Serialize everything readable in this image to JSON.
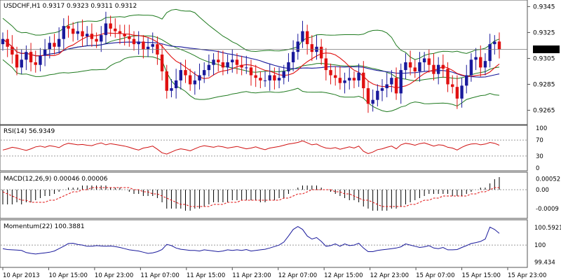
{
  "colors": {
    "bull": "#1a1a9c",
    "bear": "#e01010",
    "bollinger": "#1f7a1f",
    "ma_blue": "#1a1a9c",
    "ma_red": "#e01010",
    "rsi_line": "#d01010",
    "macd_hist": "#000000",
    "macd_signal": "#e01010",
    "momentum_line": "#1a1a9c",
    "grid": "#9a9a9a",
    "frame": "#555555",
    "price_tag_bg": "#000000",
    "price_tag_fg": "#ffffff"
  },
  "chart_data": [
    {
      "type": "candlestick",
      "title": "USDCHF,H1  0.9317 0.9323 0.9311 0.9312",
      "ylim": [
        0.9255,
        0.9349
      ],
      "yticks": [
        0.9345,
        0.9325,
        0.9305,
        0.9285,
        0.9265
      ],
      "ytick_labels": [
        "0.9345",
        "0.9325",
        "0.9305",
        "0.9285",
        "0.9265"
      ],
      "current_price": 0.9312,
      "current_price_label": "0.9312",
      "x_tick_labels": [
        "10 Apr 2013",
        "10 Apr 15:00",
        "10 Apr 23:00",
        "11 Apr 07:00",
        "11 Apr 15:00",
        "11 Apr 23:00",
        "12 Apr 07:00",
        "12 Apr 15:00",
        "12 Apr 23:00",
        "15 Apr 07:00",
        "15 Apr 15:00",
        "15 Apr 23:00"
      ],
      "candles_close": [
        0.932,
        0.9314,
        0.9308,
        0.9298,
        0.9304,
        0.931,
        0.9302,
        0.93,
        0.9307,
        0.9312,
        0.9317,
        0.9314,
        0.932,
        0.933,
        0.9328,
        0.9324,
        0.9326,
        0.9322,
        0.9324,
        0.932,
        0.9318,
        0.9323,
        0.9332,
        0.9328,
        0.9326,
        0.9324,
        0.9322,
        0.932,
        0.9316,
        0.9318,
        0.9312,
        0.9314,
        0.9316,
        0.9308,
        0.9295,
        0.928,
        0.9282,
        0.9288,
        0.9296,
        0.9292,
        0.9285,
        0.9288,
        0.9292,
        0.9296,
        0.93,
        0.9304,
        0.9302,
        0.9298,
        0.9302,
        0.9304,
        0.93,
        0.9298,
        0.9298,
        0.9292,
        0.929,
        0.9288,
        0.9288,
        0.9292,
        0.9288,
        0.929,
        0.9295,
        0.9302,
        0.931,
        0.9318,
        0.9326,
        0.9316,
        0.931,
        0.9314,
        0.9305,
        0.9296,
        0.9292,
        0.929,
        0.9286,
        0.9288,
        0.929,
        0.9288,
        0.9294,
        0.9282,
        0.927,
        0.9273,
        0.928,
        0.9282,
        0.9285,
        0.929,
        0.9278,
        0.9296,
        0.9302,
        0.9298,
        0.9295,
        0.9302,
        0.9305,
        0.93,
        0.9293,
        0.93,
        0.9297,
        0.9285,
        0.9283,
        0.9274,
        0.9284,
        0.9292,
        0.9304,
        0.9306,
        0.9298,
        0.9303,
        0.9316,
        0.9318,
        0.9312
      ]
    },
    {
      "type": "line",
      "title": "RSI(14) 56.9349",
      "ylim": [
        0,
        100
      ],
      "ytick_labels": [
        "100",
        "70",
        "30",
        "0"
      ],
      "yticks": [
        100,
        70,
        30,
        0
      ],
      "values": [
        45,
        48,
        52,
        50,
        47,
        44,
        48,
        53,
        55,
        52,
        56,
        54,
        51,
        58,
        62,
        60,
        58,
        59,
        57,
        56,
        60,
        63,
        58,
        61,
        59,
        57,
        55,
        52,
        48,
        45,
        50,
        52,
        55,
        47,
        38,
        35,
        40,
        45,
        48,
        46,
        43,
        48,
        53,
        56,
        54,
        52,
        55,
        53,
        50,
        52,
        54,
        51,
        48,
        50,
        53,
        49,
        46,
        50,
        52,
        54,
        57,
        60,
        62,
        64,
        68,
        63,
        58,
        60,
        54,
        50,
        49,
        51,
        47,
        50,
        53,
        50,
        55,
        42,
        36,
        40,
        46,
        48,
        52,
        55,
        48,
        58,
        62,
        60,
        57,
        61,
        63,
        59,
        55,
        58,
        57,
        52,
        50,
        45,
        52,
        57,
        60,
        61,
        58,
        60,
        64,
        62,
        57
      ]
    },
    {
      "type": "bar+line",
      "title": "MACD(12,26,9) 0.00046 0.00006",
      "ylim": [
        -0.0013,
        0.0007
      ],
      "yticks": [
        0.00052,
        0.0,
        -0.0009
      ],
      "ytick_labels": [
        "0.00052",
        "0.00",
        "-0.0009"
      ],
      "histogram": [
        -0.0007,
        -0.0007,
        -0.0007,
        -0.0006,
        -0.0007,
        -0.0006,
        -0.0006,
        -0.0005,
        -0.0004,
        -0.0003,
        -0.0003,
        -0.0002,
        -0.0001,
        0.0,
        0.0001,
        0.0001,
        0.0001,
        0.0002,
        0.0002,
        0.0002,
        0.0002,
        0.0002,
        0.0002,
        0.0001,
        0.0001,
        0.0001,
        0.0,
        -0.0001,
        -0.0002,
        -0.0002,
        -0.0003,
        -0.0003,
        -0.0003,
        -0.0004,
        -0.0006,
        -0.0009,
        -0.0009,
        -0.0009,
        -0.0009,
        -0.001,
        -0.001,
        -0.0009,
        -0.0009,
        -0.0008,
        -0.0007,
        -0.0006,
        -0.0006,
        -0.0006,
        -0.0006,
        -0.0005,
        -0.0005,
        -0.0005,
        -0.0005,
        -0.0005,
        -0.0005,
        -0.0006,
        -0.0006,
        -0.0005,
        -0.0005,
        -0.0004,
        -0.0004,
        -0.0002,
        0.0,
        0.0001,
        0.0002,
        0.0002,
        0.0002,
        0.0002,
        0.0001,
        0.0,
        -0.0001,
        -0.0002,
        -0.0003,
        -0.0004,
        -0.0005,
        -0.0005,
        -0.0006,
        -0.0008,
        -0.0009,
        -0.001,
        -0.001,
        -0.001,
        -0.001,
        -0.0009,
        -0.0009,
        -0.0008,
        -0.0007,
        -0.0006,
        -0.0005,
        -0.0004,
        -0.0003,
        -0.0002,
        -0.0002,
        -0.0002,
        -0.0002,
        -0.0002,
        -0.0003,
        -0.0003,
        -0.0003,
        -0.0002,
        -0.0001,
        0.0,
        0.0001,
        0.0001,
        0.0003,
        0.0005,
        0.0006
      ],
      "signal": [
        -0.0001,
        -0.0002,
        -0.0003,
        -0.0004,
        -0.0005,
        -0.0005,
        -0.0006,
        -0.0006,
        -0.0006,
        -0.0006,
        -0.0005,
        -0.0005,
        -0.0004,
        -0.0003,
        -0.0002,
        -0.0001,
        -0.0001,
        0.0,
        0.0,
        0.0001,
        0.0001,
        0.0001,
        0.0001,
        0.0001,
        0.0001,
        0.0001,
        0.0001,
        0.0001,
        0.0,
        0.0,
        -0.0001,
        -0.0001,
        -0.0002,
        -0.0002,
        -0.0003,
        -0.0004,
        -0.0005,
        -0.0006,
        -0.0007,
        -0.0007,
        -0.0008,
        -0.0008,
        -0.0008,
        -0.0008,
        -0.0008,
        -0.0007,
        -0.0007,
        -0.0007,
        -0.0006,
        -0.0006,
        -0.0006,
        -0.0005,
        -0.0005,
        -0.0005,
        -0.0005,
        -0.0005,
        -0.0005,
        -0.0005,
        -0.0005,
        -0.0005,
        -0.0004,
        -0.0004,
        -0.0003,
        -0.0002,
        -0.0002,
        -0.0001,
        0.0,
        0.0,
        0.0,
        0.0,
        0.0,
        -0.0001,
        -0.0001,
        -0.0002,
        -0.0002,
        -0.0003,
        -0.0004,
        -0.0005,
        -0.0005,
        -0.0006,
        -0.0007,
        -0.0008,
        -0.0008,
        -0.0008,
        -0.0008,
        -0.0008,
        -0.0008,
        -0.0007,
        -0.0007,
        -0.0006,
        -0.0005,
        -0.0005,
        -0.0004,
        -0.0004,
        -0.0003,
        -0.0003,
        -0.0003,
        -0.0003,
        -0.0003,
        -0.0003,
        -0.0002,
        -0.0002,
        -0.0001,
        -0.0001,
        0.0,
        0.0001,
        0.0001
      ]
    },
    {
      "type": "line",
      "title": "Momentum(22) 100.3881",
      "ylim": [
        99.3,
        100.75
      ],
      "yticks": [
        100.5921,
        100,
        99.434
      ],
      "ytick_labels": [
        "100.5921",
        "100",
        "99.434"
      ],
      "values": [
        99.88,
        99.85,
        99.84,
        99.83,
        99.82,
        99.75,
        99.72,
        99.7,
        99.72,
        99.74,
        99.76,
        99.8,
        99.88,
        99.96,
        100.05,
        100.06,
        100.02,
        100.0,
        99.96,
        99.96,
        99.98,
        99.97,
        99.96,
        99.97,
        99.95,
        99.92,
        99.88,
        99.84,
        99.82,
        99.8,
        99.76,
        99.72,
        99.74,
        99.78,
        99.85,
        100.02,
        99.98,
        99.9,
        99.86,
        99.84,
        99.82,
        99.82,
        99.8,
        99.84,
        99.82,
        99.8,
        99.78,
        99.8,
        99.84,
        99.82,
        99.84,
        99.82,
        99.85,
        99.8,
        99.82,
        99.84,
        99.86,
        99.9,
        99.95,
        100.0,
        100.1,
        100.3,
        100.52,
        100.62,
        100.52,
        100.3,
        100.2,
        100.25,
        100.12,
        99.96,
        99.98,
        100.04,
        99.96,
        100.04,
        99.98,
        100.0,
        100.06,
        99.9,
        99.78,
        99.78,
        99.82,
        99.84,
        99.86,
        99.88,
        99.9,
        99.94,
        100.04,
        100.0,
        99.96,
        99.92,
        99.94,
        99.98,
        99.9,
        99.88,
        99.92,
        99.84,
        99.84,
        99.85,
        99.92,
        99.98,
        100.05,
        100.08,
        100.12,
        100.2,
        100.6,
        100.52,
        100.39
      ]
    }
  ]
}
